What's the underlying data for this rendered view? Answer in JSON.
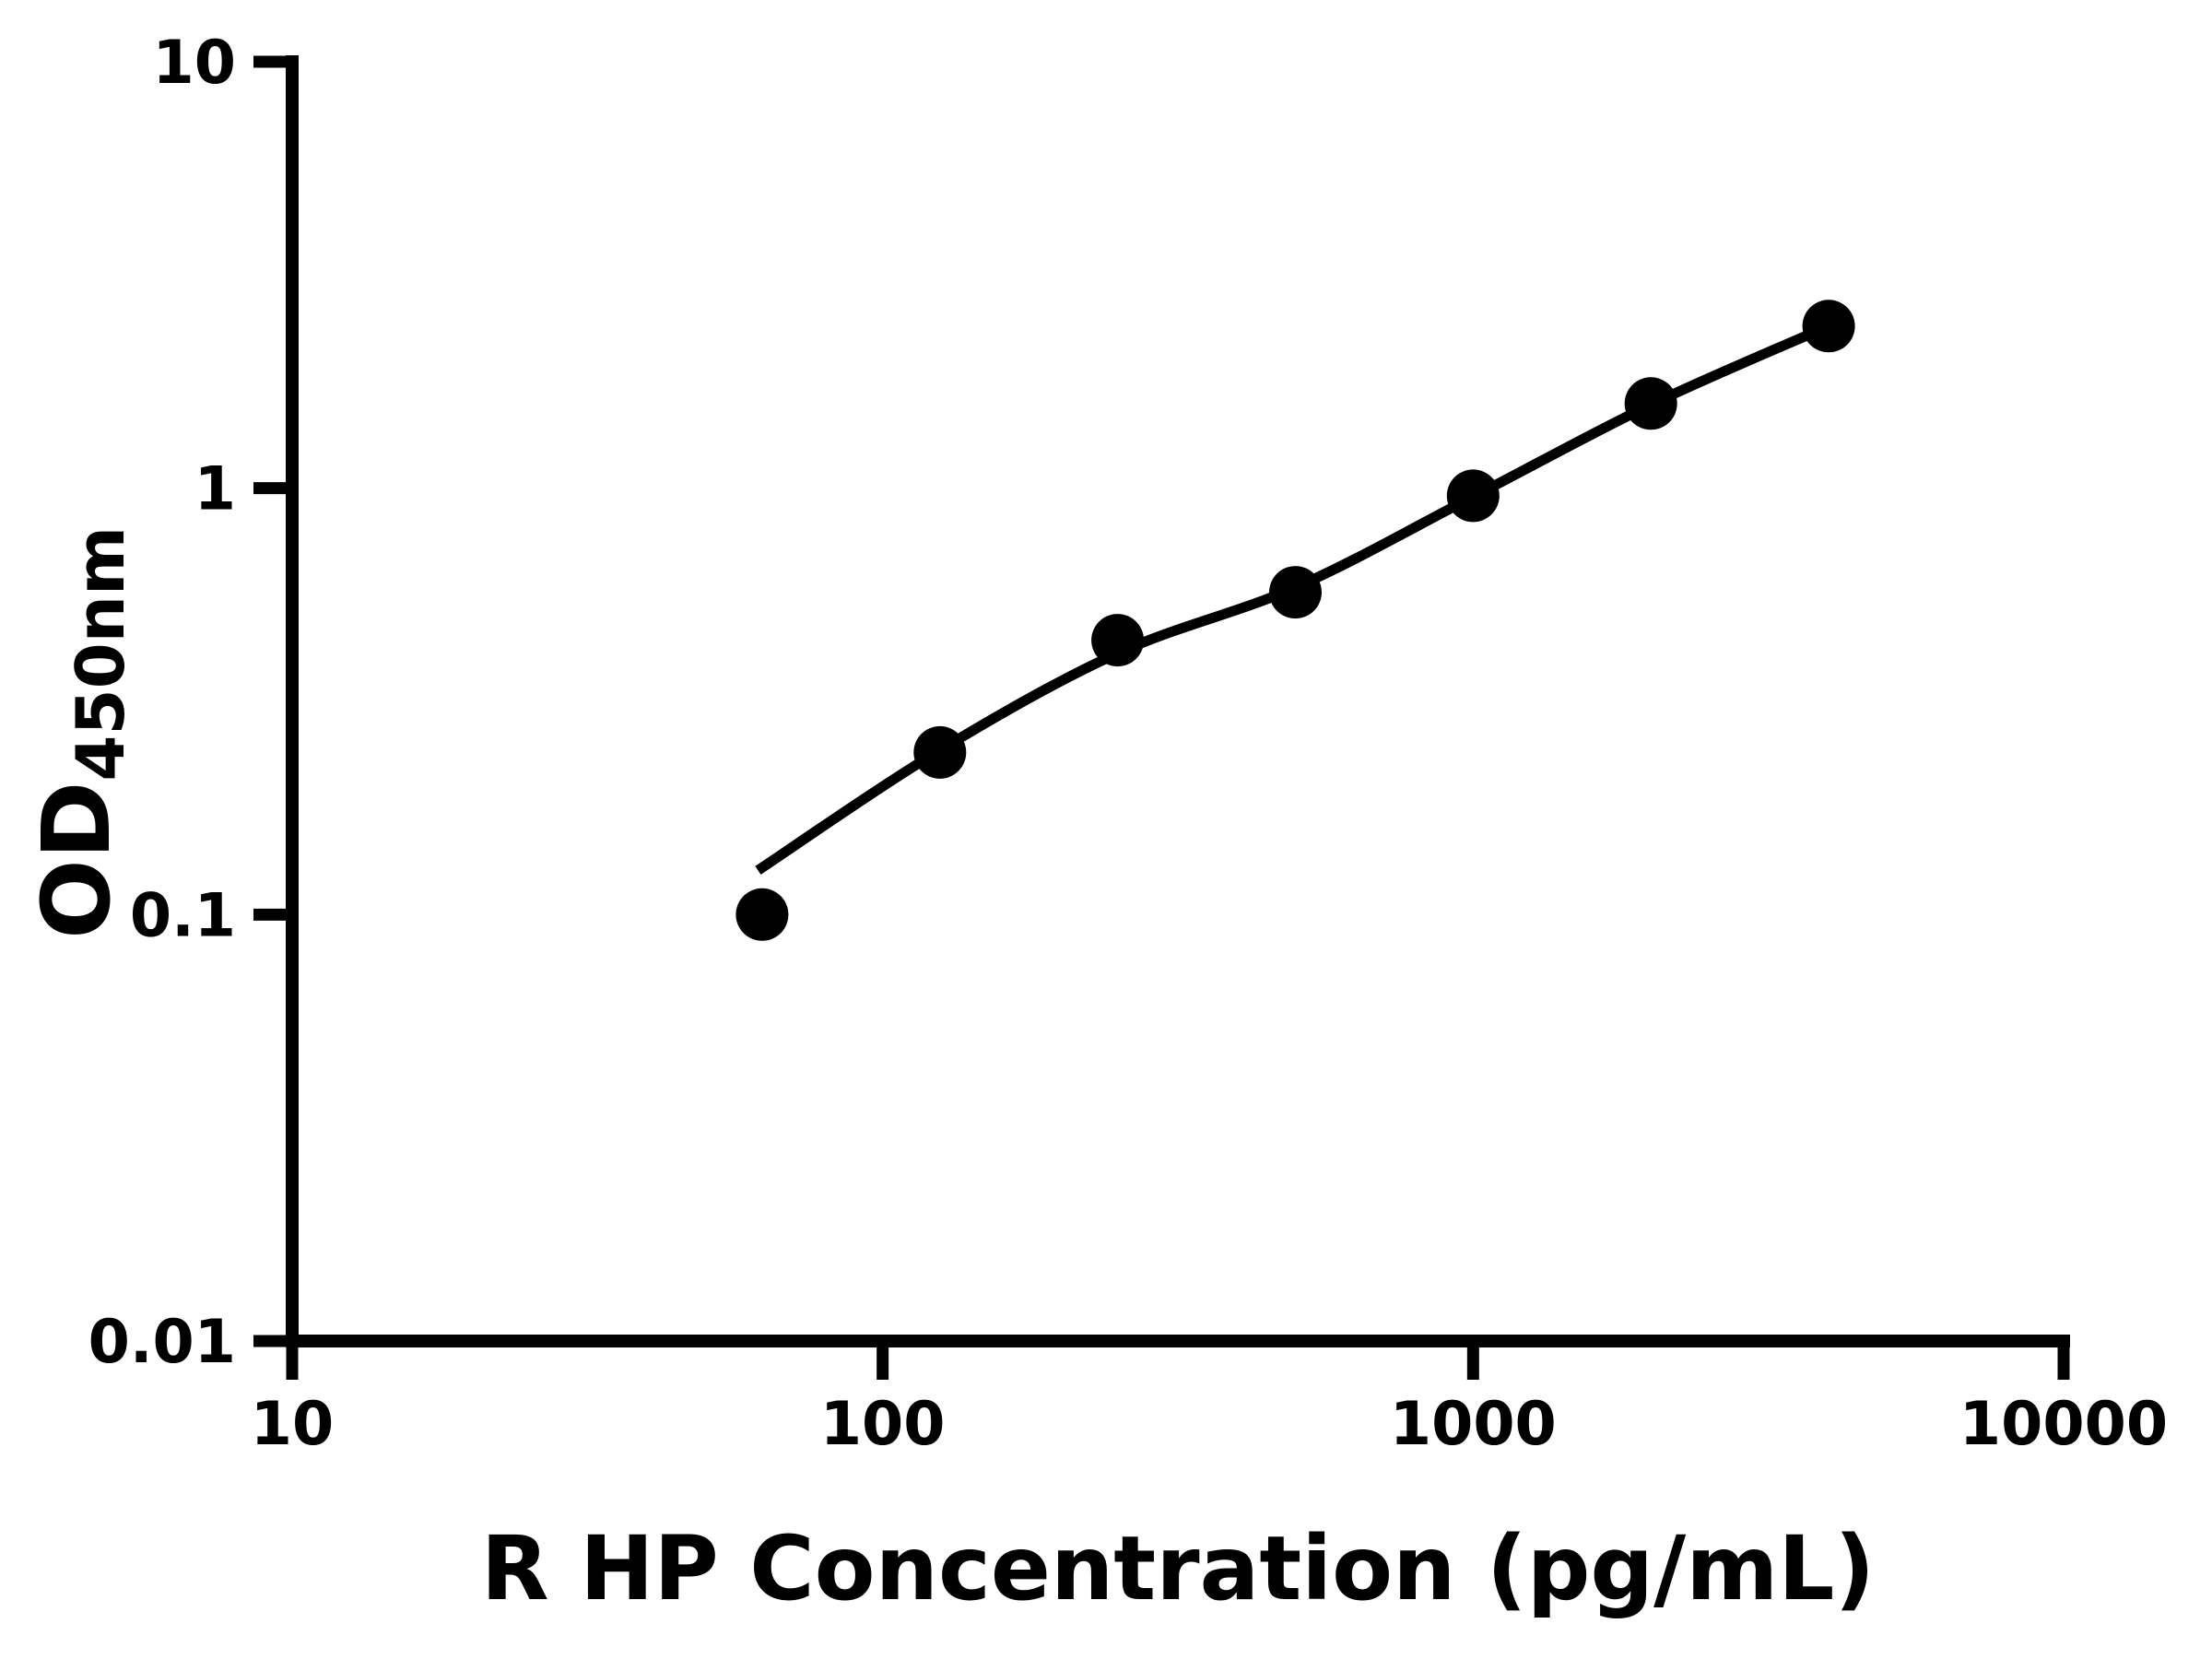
{
  "chart_data": {
    "type": "scatter",
    "title": "",
    "xlabel": "R HP Concentration (pg/mL)",
    "ylabel_base": "OD",
    "ylabel_sub": "450nm",
    "x_scale": "log",
    "y_scale": "log",
    "xlim": [
      10,
      10000
    ],
    "ylim": [
      0.01,
      10
    ],
    "grid": false,
    "legend": "none",
    "x_ticks": [
      {
        "value": 10,
        "label": "10"
      },
      {
        "value": 100,
        "label": "100"
      },
      {
        "value": 1000,
        "label": "1000"
      },
      {
        "value": 10000,
        "label": "10000"
      }
    ],
    "y_ticks": [
      {
        "value": 10,
        "label": "10"
      },
      {
        "value": 1,
        "label": "1"
      },
      {
        "value": 0.1,
        "label": "0.1"
      },
      {
        "value": 0.01,
        "label": "0.01"
      }
    ],
    "series": [
      {
        "name": "standard-points",
        "type": "scatter",
        "marker": "filled-circle",
        "points": [
          [
            62.5,
            0.1
          ],
          [
            125,
            0.24
          ],
          [
            250,
            0.44
          ],
          [
            500,
            0.57
          ],
          [
            1000,
            0.96
          ],
          [
            2000,
            1.58
          ],
          [
            4000,
            2.4
          ]
        ]
      },
      {
        "name": "fit-line",
        "type": "line",
        "points": [
          [
            61.5,
            0.127
          ],
          [
            125,
            0.243
          ],
          [
            250,
            0.41
          ],
          [
            500,
            0.585
          ],
          [
            1000,
            0.955
          ],
          [
            2000,
            1.57
          ],
          [
            4000,
            2.4
          ]
        ]
      }
    ],
    "colors": {
      "foreground": "#000000",
      "background": "#ffffff"
    }
  }
}
